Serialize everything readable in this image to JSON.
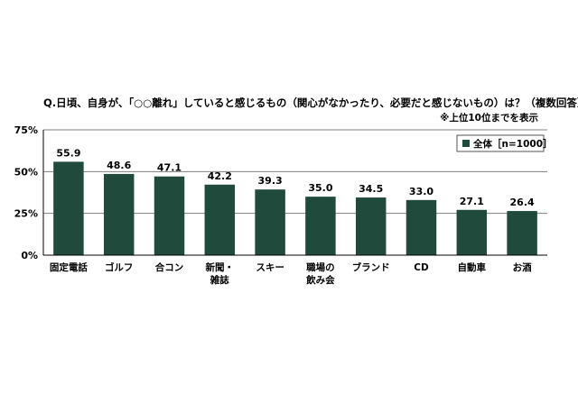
{
  "chart_data": {
    "type": "bar",
    "title": "Q.日頃、自身が、「○○離れ」していると感じるもの（関心がなかったり、必要だと感じないもの）は？（複数回答）",
    "note": "※上位10位までを表示",
    "categories": [
      "固定電話",
      "ゴルフ",
      "合コン",
      "新聞・\n雑誌",
      "スキー",
      "職場の\n飲み会",
      "ブランド",
      "CD",
      "自動車",
      "お酒"
    ],
    "series": [
      {
        "name": "全体［n=1000］",
        "values": [
          55.9,
          48.6,
          47.1,
          42.2,
          39.3,
          35.0,
          34.5,
          33.0,
          27.1,
          26.4
        ]
      }
    ],
    "value_labels": [
      "55.9",
      "48.6",
      "47.1",
      "42.2",
      "39.3",
      "35.0",
      "34.5",
      "33.0",
      "27.1",
      "26.4"
    ],
    "yticks": [
      "0%",
      "25%",
      "50%",
      "75%"
    ],
    "ytick_values": [
      0,
      25,
      50,
      75
    ],
    "ylim": [
      0,
      75
    ],
    "grid": true,
    "legend": "top-right",
    "bar_color": "#1f4a3c"
  }
}
